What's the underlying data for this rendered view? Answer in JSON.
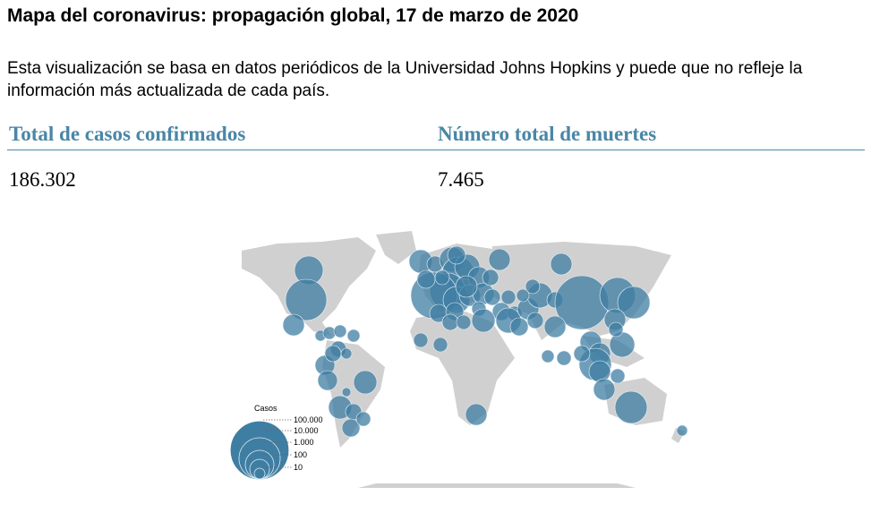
{
  "title": "Mapa del coronavirus: propagación global, 17 de marzo de 2020",
  "description": "Esta visualización se basa en datos periódicos de la Universidad Johns Hopkins y puede que no refleje la información más actualizada de cada país.",
  "stats": [
    {
      "label": "Total de casos confirmados",
      "value": "186.302"
    },
    {
      "label": "Número total de muertes",
      "value": "7.465"
    }
  ],
  "map": {
    "bubble_color": "#3f7ea3",
    "land_color": "#d0d0d0",
    "legend": {
      "title": "Casos",
      "levels": [
        "100.000",
        "10.000",
        "1.000",
        "100",
        "10"
      ]
    }
  }
}
